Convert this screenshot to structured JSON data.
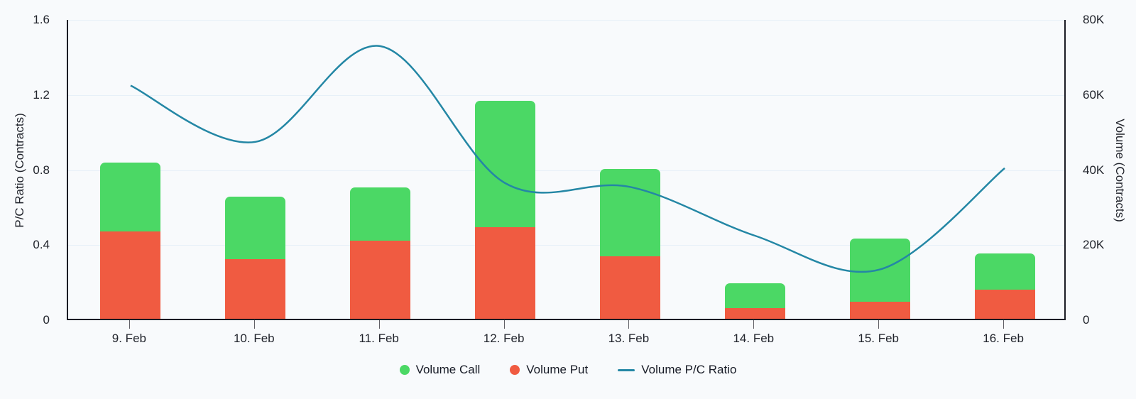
{
  "chart_data": {
    "type": "combo-column-spline",
    "categories": [
      "9. Feb",
      "10. Feb",
      "11. Feb",
      "12. Feb",
      "13. Feb",
      "14. Feb",
      "15. Feb",
      "16. Feb"
    ],
    "series": [
      {
        "name": "Volume Call",
        "type": "column",
        "stack_position": "top",
        "color": "#4bd865",
        "axis": "right",
        "values": [
          18500,
          16700,
          14200,
          33600,
          23400,
          6500,
          16800,
          9600
        ]
      },
      {
        "name": "Volume Put",
        "type": "column",
        "stack_position": "bottom",
        "color": "#f05b41",
        "axis": "right",
        "values": [
          23200,
          15900,
          20800,
          24500,
          16600,
          2900,
          4600,
          7800
        ]
      },
      {
        "name": "Volume P/C Ratio",
        "type": "spline",
        "color": "#2487a5",
        "axis": "left",
        "values": [
          1.25,
          0.95,
          1.46,
          0.73,
          0.71,
          0.45,
          0.27,
          0.81
        ]
      }
    ],
    "left_axis": {
      "title": "P/C Ratio (Contracts)",
      "min": 0,
      "max": 1.6,
      "tick_values": [
        0,
        0.4,
        0.8,
        1.2,
        1.6
      ],
      "tick_labels": [
        "0",
        "0.4",
        "0.8",
        "1.2",
        "1.6"
      ]
    },
    "right_axis": {
      "title": "Volume (Contracts)",
      "min": 0,
      "max": 80000,
      "tick_values": [
        0,
        20000,
        40000,
        60000,
        80000
      ],
      "tick_labels": [
        "0",
        "20K",
        "40K",
        "60K",
        "80K"
      ]
    },
    "legend": [
      "Volume Call",
      "Volume Put",
      "Volume P/C Ratio"
    ],
    "legend_position": "bottom",
    "grid": true
  },
  "colors": {
    "background": "#f8fafc",
    "gridline": "#e7f0f8",
    "axis_line": "#1b1c24",
    "tick_mark": "#5f5f66",
    "text": "#21242c",
    "call_green": "#4bd865",
    "put_red": "#f05b41",
    "ratio_teal": "#2487a5"
  }
}
